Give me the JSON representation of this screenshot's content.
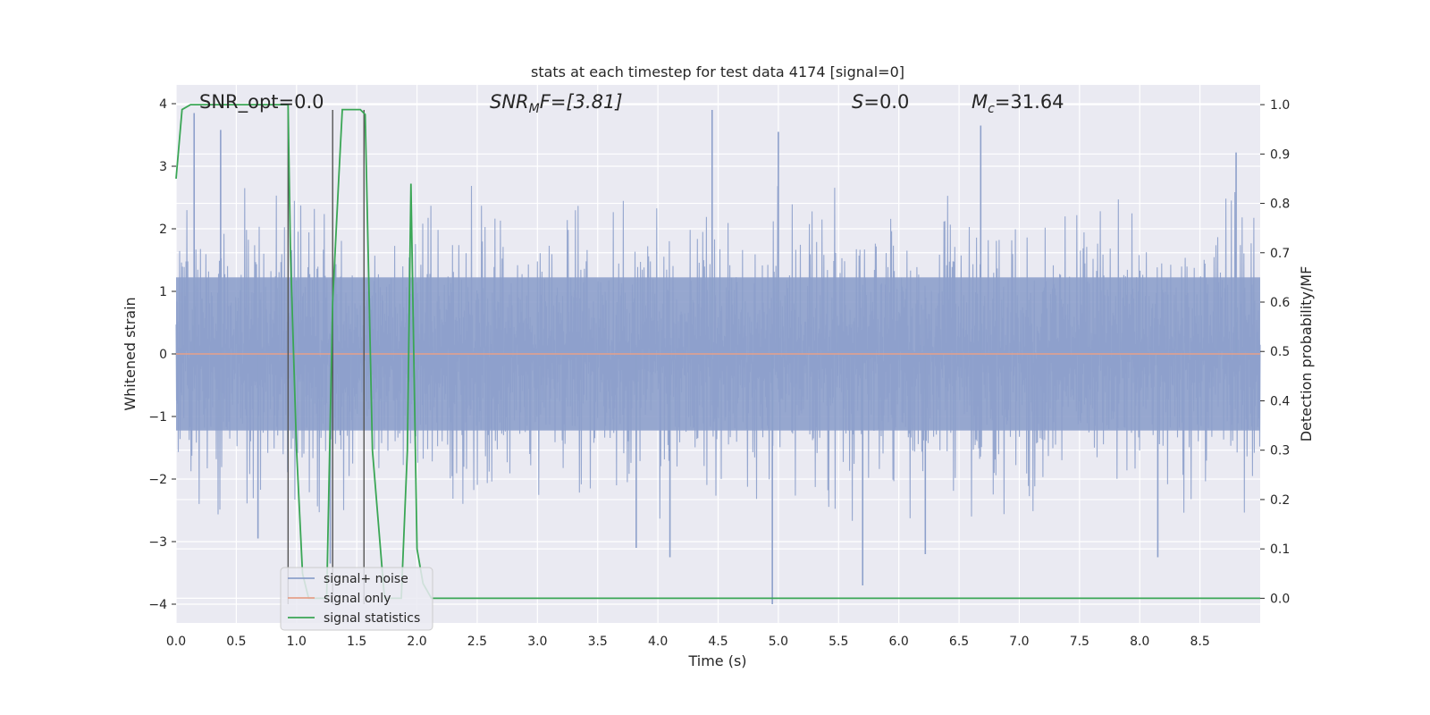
{
  "chart_data": {
    "type": "line",
    "title": "stats at each timestep for test data 4174 [signal=0]",
    "xlabel": "Time (s)",
    "ylabel_left": "Whitened strain",
    "ylabel_right": "Detection probability/MF",
    "xlim": [
      0,
      9.0
    ],
    "ylim_left": [
      -4.3,
      4.3
    ],
    "ylim_right": [
      -0.05,
      1.04
    ],
    "x_ticks": [
      "0.0",
      "0.5",
      "1.0",
      "1.5",
      "2.0",
      "2.5",
      "3.0",
      "3.5",
      "4.0",
      "4.5",
      "5.0",
      "5.5",
      "6.0",
      "6.5",
      "7.0",
      "7.5",
      "8.0",
      "8.5"
    ],
    "y_ticks_left": [
      "4",
      "3",
      "2",
      "1",
      "0",
      "−1",
      "−2",
      "−3",
      "−4"
    ],
    "y_ticks_right": [
      "1.0",
      "0.9",
      "0.8",
      "0.7",
      "0.6",
      "0.5",
      "0.4",
      "0.3",
      "0.2",
      "0.1",
      "0.0"
    ],
    "grid": true,
    "legend_position": "lower-left",
    "annotations": {
      "snr_opt": "SNR_opt=0.0",
      "snr_mf_base": "SNR",
      "snr_mf_sub": "M",
      "snr_mf_suffix": "F=[3.81]",
      "s_label": "S",
      "s_value": "=0.0",
      "mc_label": "M",
      "mc_sub": "c",
      "mc_value": "=31.64"
    },
    "series": [
      {
        "name": "signal+ noise",
        "axis": "left",
        "color": "#8da0cb",
        "x_range": [
          0,
          9.0
        ],
        "envelope_typical": [
          -1.7,
          1.7
        ],
        "spikes": [
          [
            0.15,
            3.85
          ],
          [
            0.37,
            3.58
          ],
          [
            4.45,
            3.9
          ],
          [
            5.0,
            3.55
          ],
          [
            6.68,
            3.65
          ],
          [
            8.8,
            3.22
          ],
          [
            4.95,
            -4.0
          ],
          [
            5.7,
            -3.7
          ],
          [
            6.22,
            -3.2
          ],
          [
            8.15,
            -3.25
          ],
          [
            4.1,
            -3.25
          ],
          [
            1.28,
            -3.35
          ],
          [
            3.82,
            -3.1
          ],
          [
            0.68,
            -2.95
          ]
        ]
      },
      {
        "name": "signal only",
        "axis": "left",
        "color": "#e5a08a",
        "x": [
          0,
          9.0
        ],
        "y": [
          0,
          0
        ]
      },
      {
        "name": "signal statistics",
        "axis": "right",
        "color": "#3aa655",
        "x": [
          0.0,
          0.05,
          0.12,
          0.93,
          0.95,
          1.0,
          1.05,
          1.1,
          1.25,
          1.3,
          1.35,
          1.38,
          1.45,
          1.53,
          1.57,
          1.63,
          1.73,
          1.87,
          1.92,
          1.95,
          2.0,
          2.05,
          2.12,
          9.0
        ],
        "y": [
          0.85,
          0.99,
          1.0,
          1.0,
          0.7,
          0.3,
          0.05,
          0.0,
          0.0,
          0.6,
          0.85,
          0.99,
          0.99,
          0.99,
          0.98,
          0.3,
          0.0,
          0.0,
          0.3,
          0.84,
          0.1,
          0.03,
          0.0,
          0.0
        ]
      }
    ],
    "vertical_markers": {
      "color": "#555555",
      "lines": [
        [
          0.93,
          -4.0,
          4.0
        ],
        [
          1.3,
          -4.0,
          3.9
        ],
        [
          1.56,
          -4.0,
          3.9
        ]
      ]
    }
  }
}
